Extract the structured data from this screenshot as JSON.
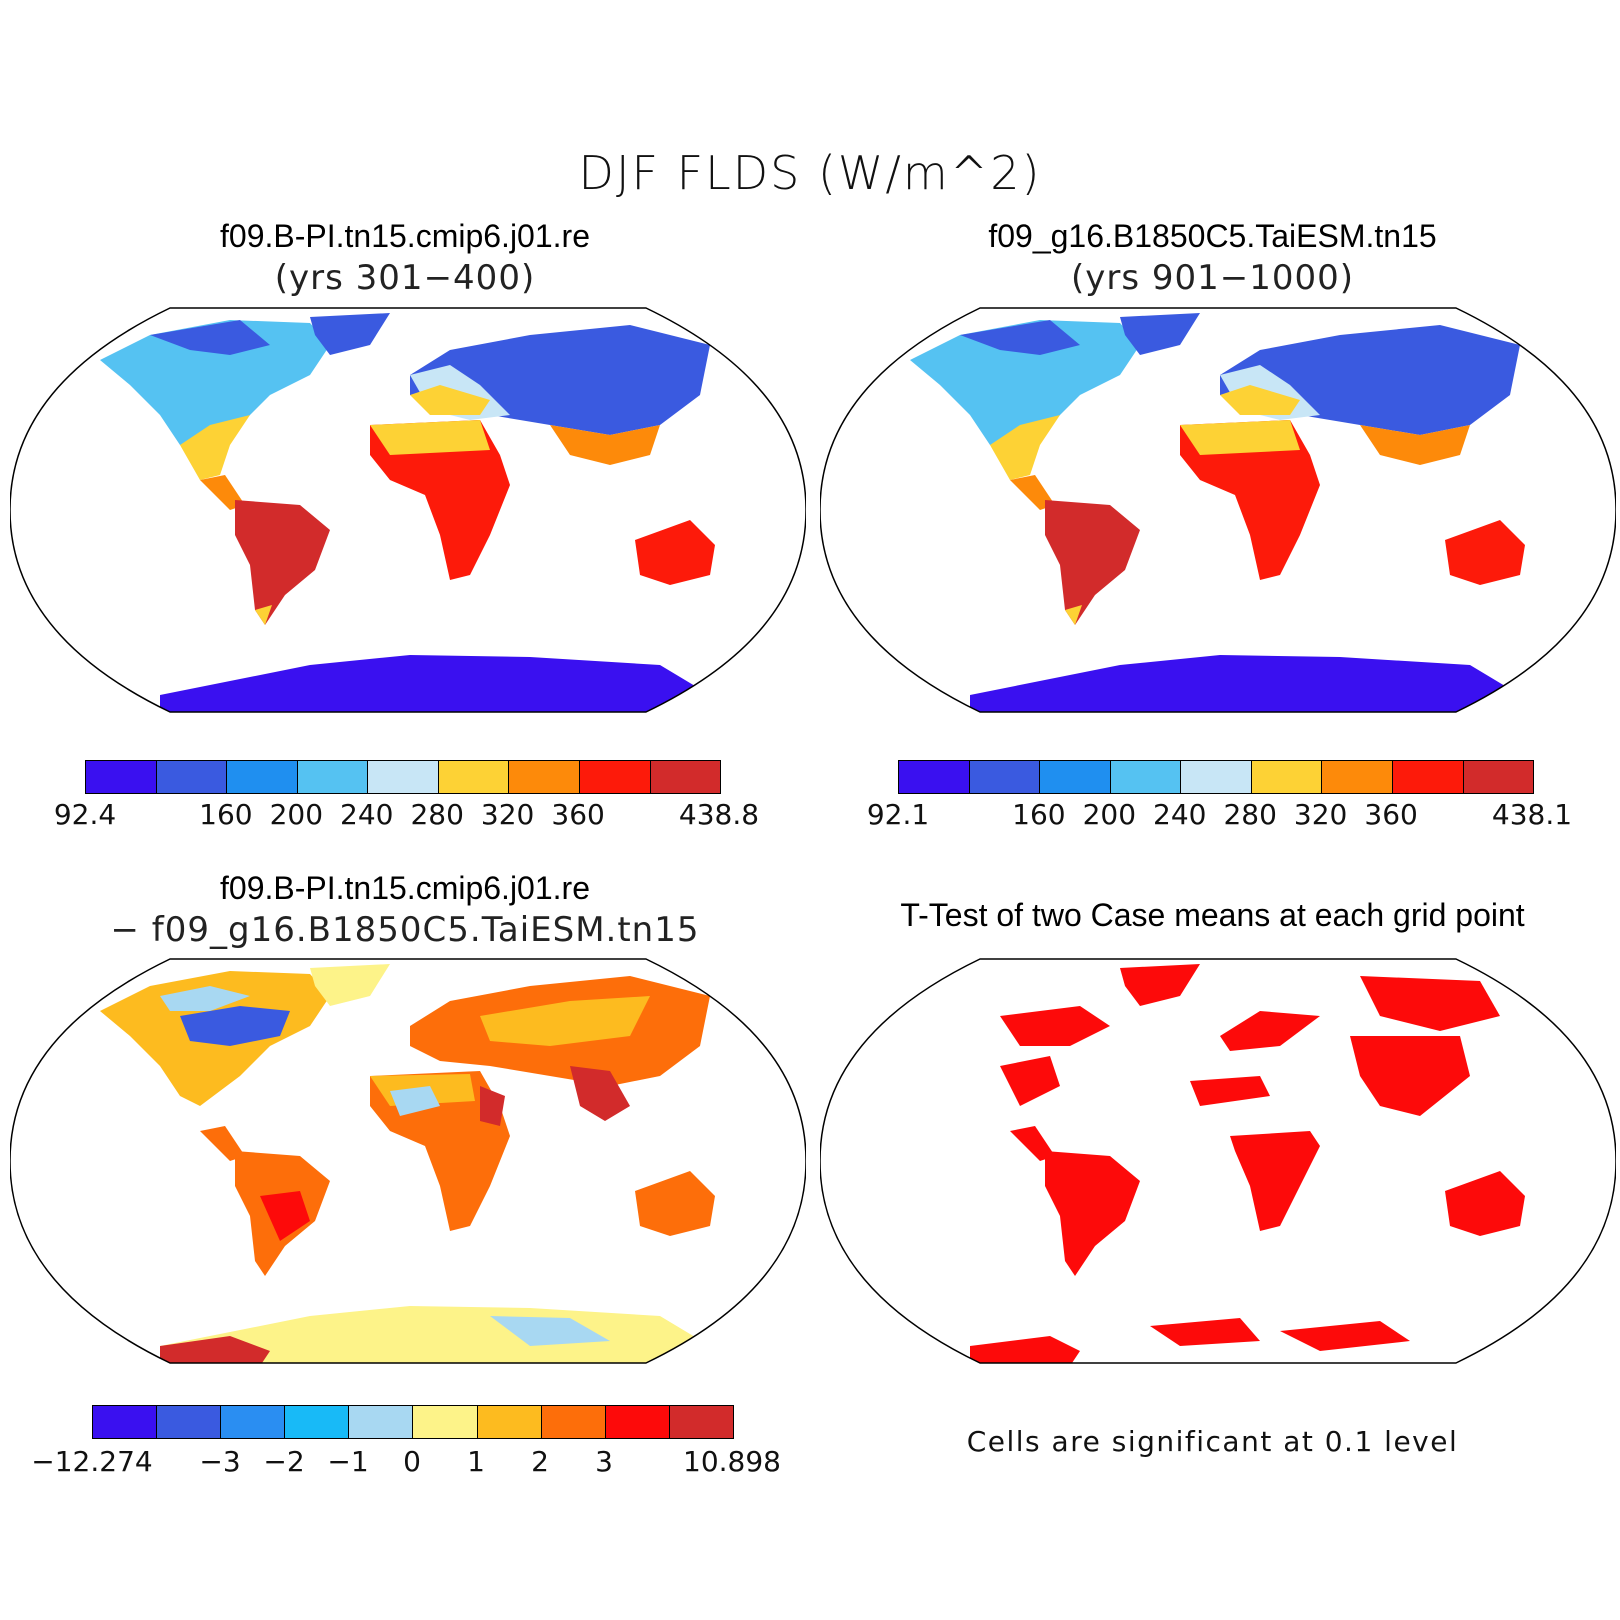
{
  "title": "DJF FLDS (W/m^2)",
  "panels": {
    "p1": {
      "title": "f09.B-PI.tn15.cmip6.j01.re",
      "subtitle": "(yrs 301−400)"
    },
    "p2": {
      "title": "f09_g16.B1850C5.TaiESM.tn15",
      "subtitle": "(yrs 901−1000)"
    },
    "p3": {
      "title": "f09.B-PI.tn15.cmip6.j01.re",
      "subtitle": "− f09_g16.B1850C5.TaiESM.tn15"
    },
    "p4": {
      "title": "T-Test of two Case means at each grid point",
      "note": "Cells are significant at 0.1 level"
    }
  },
  "colorbars": {
    "abs1": {
      "colors": [
        "#3a10f0",
        "#3a5ae0",
        "#1f8ff0",
        "#55c2f2",
        "#c8e6f6",
        "#fdd235",
        "#fd8a0a",
        "#fd1a0a",
        "#d22b2b"
      ],
      "labels": [
        "92.4",
        "160",
        "200",
        "240",
        "280",
        "320",
        "360",
        "438.8"
      ]
    },
    "abs2": {
      "colors": [
        "#3a10f0",
        "#3a5ae0",
        "#1f8ff0",
        "#55c2f2",
        "#c8e6f6",
        "#fdd235",
        "#fd8a0a",
        "#fd1a0a",
        "#d22b2b"
      ],
      "labels": [
        "92.1",
        "160",
        "200",
        "240",
        "280",
        "320",
        "360",
        "438.1"
      ]
    },
    "diff": {
      "colors": [
        "#3a10f0",
        "#3a5ae0",
        "#2a8ef2",
        "#18baf7",
        "#a8d8f2",
        "#fdf389",
        "#fdbb1f",
        "#fd6e0a",
        "#fd0a0a",
        "#d22b2b"
      ],
      "labels": [
        "−12.274",
        "−3",
        "−2",
        "−1",
        "0",
        "1",
        "2",
        "3",
        "10.898"
      ]
    }
  }
}
